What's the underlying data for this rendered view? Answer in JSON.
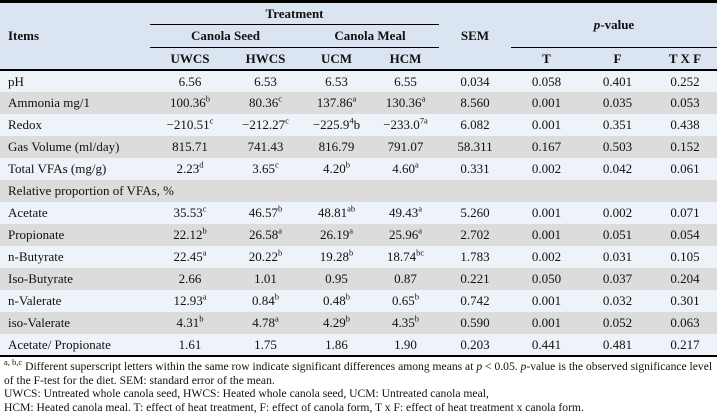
{
  "table": {
    "header": {
      "items": "Items",
      "treatment": "Treatment",
      "canola_seed": "Canola Seed",
      "canola_meal": "Canola Meal",
      "sem": "SEM",
      "p_value": "*p*-value",
      "treatment_cols": [
        "UWCS",
        "HWCS",
        "UCM",
        "HCM"
      ],
      "p_cols": [
        "T",
        "F",
        "T X F"
      ]
    },
    "rows": [
      {
        "label": "pH",
        "cells": [
          "6.56",
          "6.53",
          "6.53",
          "6.55",
          "0.034",
          "0.058",
          "0.401",
          "0.252"
        ]
      },
      {
        "label": "Ammonia mg/1",
        "cells": [
          "100.36^b",
          "80.36^c",
          "137.86^a",
          "130.36^a",
          "8.560",
          "0.001",
          "0.035",
          "0.053"
        ]
      },
      {
        "label": "Redox",
        "cells": [
          "−210.51^c",
          "−212.27^c",
          "−225.9^4^b",
          "−233.0^7a",
          "6.082",
          "0.001",
          "0.351",
          "0.438"
        ]
      },
      {
        "label": "Gas Volume (ml/day)",
        "cells": [
          "815.71",
          "741.43",
          "816.79",
          "791.07",
          "58.311",
          "0.167",
          "0.503",
          "0.152"
        ]
      },
      {
        "label": "Total VFAs (mg/g)",
        "cells": [
          "2.23^d",
          "3.65^c",
          "4.20^b",
          "4.60^a",
          "0.331",
          "0.002",
          "0.042",
          "0.061"
        ]
      },
      {
        "label": "Relative proportion of VFAs, %",
        "section": true
      },
      {
        "label": "Acetate",
        "cells": [
          "35.53^c",
          "46.57^b",
          "48.81^ab",
          "49.43^a",
          "5.260",
          "0.001",
          "0.002",
          "0.071"
        ]
      },
      {
        "label": "Propionate",
        "cells": [
          "22.12^b",
          "26.58^a",
          "26.19^a",
          "25.96^a",
          "2.702",
          "0.001",
          "0.051",
          "0.054"
        ]
      },
      {
        "label": "n-Butyrate",
        "cells": [
          "22.45^a",
          "20.22^b",
          "19.28^b",
          "18.74^bc",
          "1.783",
          "0.002",
          "0.031",
          "0.105"
        ]
      },
      {
        "label": "Iso-Butyrate",
        "cells": [
          "2.66",
          "1.01",
          "0.95",
          "0.87",
          "0.221",
          "0.050",
          "0.037",
          "0.204"
        ]
      },
      {
        "label": "n-Valerate",
        "cells": [
          "12.93^a",
          "0.84^b",
          "0.48^b",
          "0.65^b",
          "0.742",
          "0.001",
          "0.032",
          "0.301"
        ]
      },
      {
        "label": "iso-Valerate",
        "cells": [
          "4.31^b",
          "4.78^a",
          "4.29^b",
          "4.35^b",
          "0.590",
          "0.001",
          "0.052",
          "0.063"
        ]
      },
      {
        "label": "Acetate/ Propionate",
        "cells": [
          "1.61",
          "1.75",
          "1.86",
          "1.90",
          "0.203",
          "0.441",
          "0.481",
          "0.217"
        ]
      }
    ]
  },
  "footnotes": [
    "^a, b,c^ Different superscript letters within the same row indicate significant differences among means at *p* < 0.05. *p*-value is the observed significance level of the F-test for the diet. SEM: standard error of the mean.",
    "UWCS: Untreated whole canola seed, HWCS: Heated whole canola seed, UCM: Untreated canola meal,",
    "HCM: Heated canola meal. T: effect of heat treatment, F: effect of canola form, T x F: effect of heat treatment x canola form."
  ],
  "colors": {
    "header_bg": "#dbe5f1",
    "row_light": "#eef2f9",
    "row_gray": "#dcdcdc",
    "border": "#000000"
  }
}
